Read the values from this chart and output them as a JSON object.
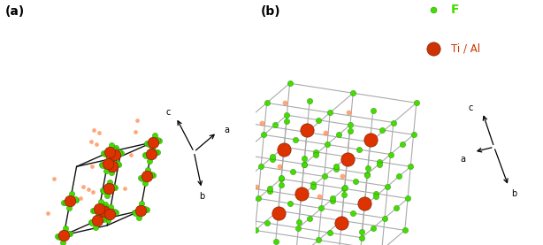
{
  "fig_width": 6.14,
  "fig_height": 2.77,
  "dpi": 100,
  "background_color": "#ffffff",
  "label_a": "(a)",
  "label_b": "(b)",
  "legend_F_color": "#44dd00",
  "legend_TiAl_color": "#cc3300",
  "legend_F_label": "F",
  "legend_TiAl_label": "Ti / Al",
  "F_color": "#44dd00",
  "Ti_color": "#dd3300",
  "bond_color_a": "#888888",
  "bond_color_b": "#aaaaaa",
  "unit_cell_color": "#111111",
  "panel_a_split": 0.47
}
